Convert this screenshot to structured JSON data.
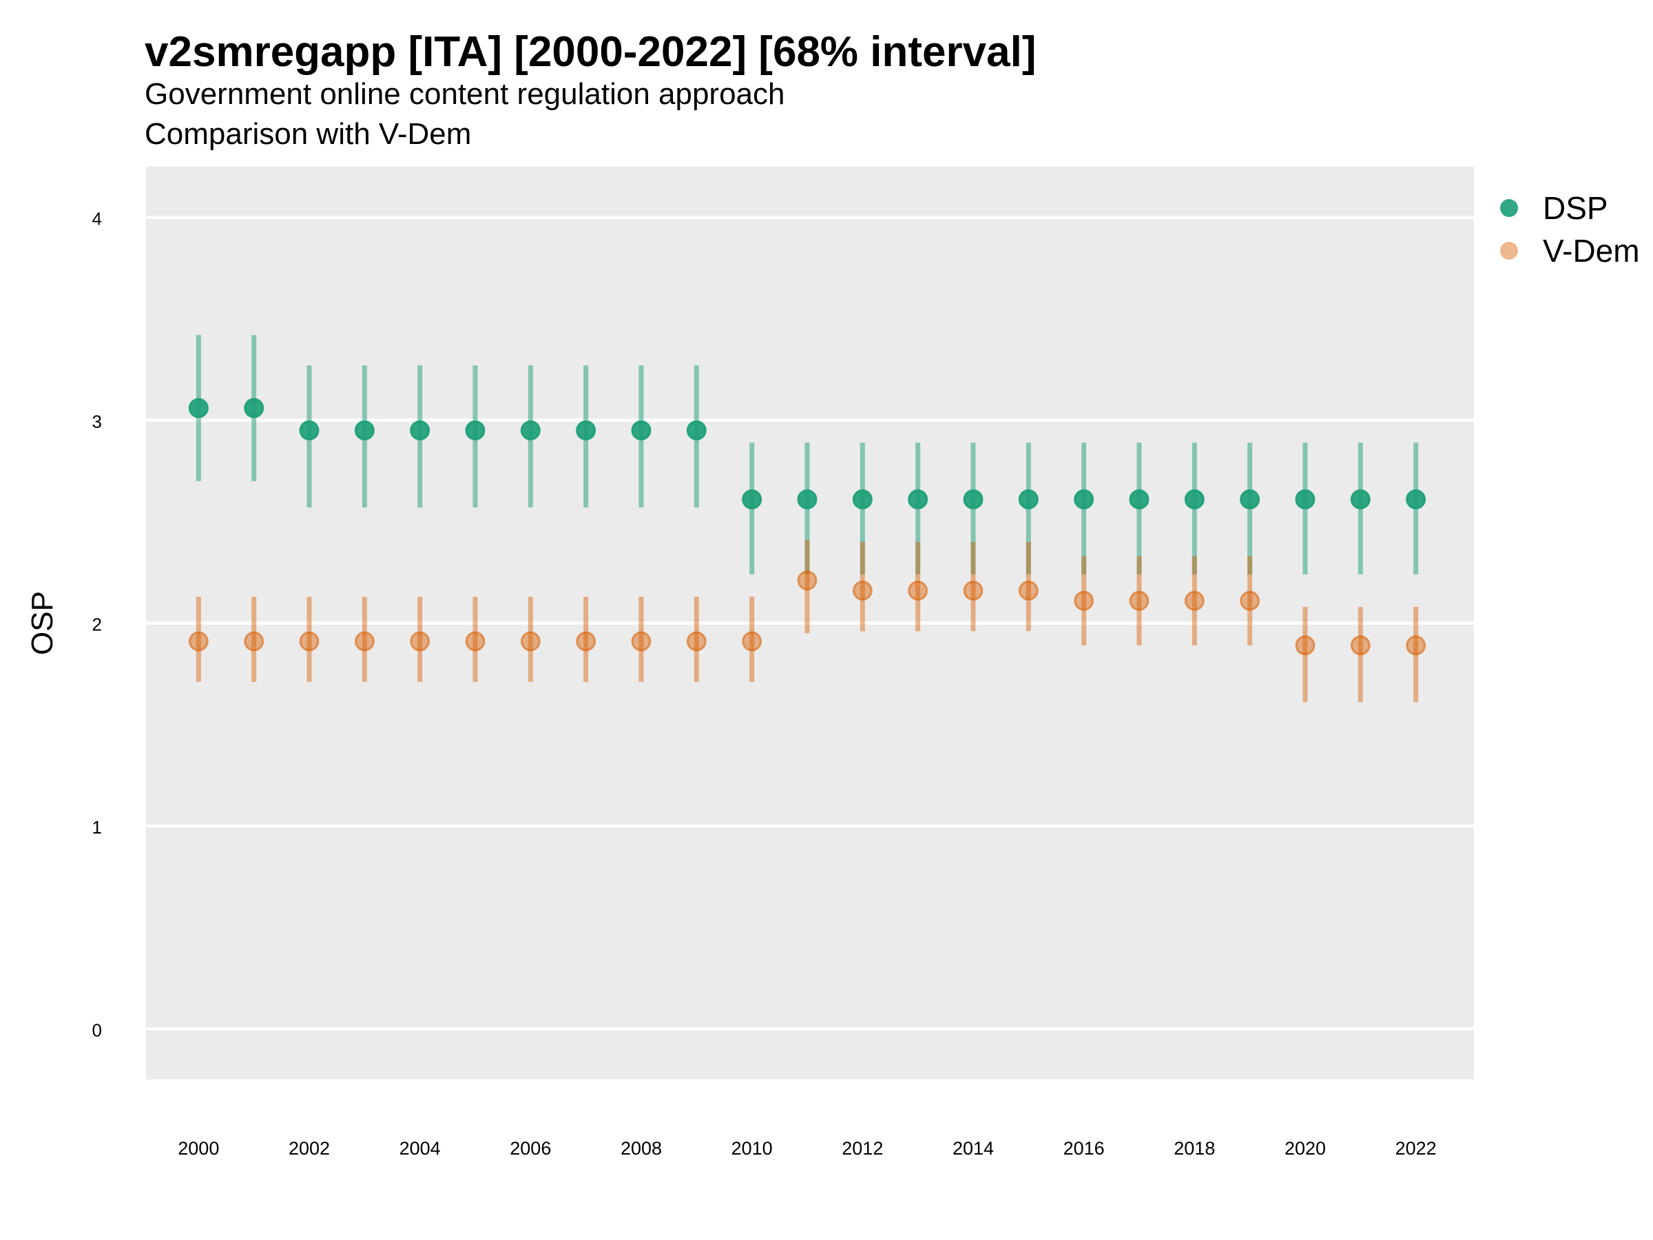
{
  "chart_data": {
    "type": "scatter",
    "title": "v2smregapp [ITA] [2000-2022] [68% interval]",
    "subtitle": "Government online content regulation approach",
    "caption": "Comparison with V-Dem",
    "xlabel": "",
    "ylabel": "OSP",
    "xlim": [
      1999.05,
      2023.05
    ],
    "ylim": [
      -0.25,
      4.25
    ],
    "x_ticks": [
      "2000",
      "2002",
      "2004",
      "2006",
      "2008",
      "2010",
      "2012",
      "2014",
      "2016",
      "2018",
      "2020",
      "2022"
    ],
    "y_ticks": [
      "0",
      "1",
      "2",
      "3",
      "4"
    ],
    "grid": true,
    "legend_position": "right",
    "x": [
      2000,
      2001,
      2002,
      2003,
      2004,
      2005,
      2006,
      2007,
      2008,
      2009,
      2010,
      2011,
      2012,
      2013,
      2014,
      2015,
      2016,
      2017,
      2018,
      2019,
      2020,
      2021,
      2022
    ],
    "series": [
      {
        "name": "DSP",
        "color": "#1b9e77",
        "values": [
          3.06,
          3.06,
          2.95,
          2.95,
          2.95,
          2.95,
          2.95,
          2.95,
          2.95,
          2.95,
          2.61,
          2.61,
          2.61,
          2.61,
          2.61,
          2.61,
          2.61,
          2.61,
          2.61,
          2.61,
          2.61,
          2.61,
          2.61
        ],
        "lower": [
          2.7,
          2.7,
          2.57,
          2.57,
          2.57,
          2.57,
          2.57,
          2.57,
          2.57,
          2.57,
          2.24,
          2.24,
          2.24,
          2.24,
          2.24,
          2.24,
          2.24,
          2.24,
          2.24,
          2.24,
          2.24,
          2.24,
          2.24
        ],
        "upper": [
          3.42,
          3.42,
          3.27,
          3.27,
          3.27,
          3.27,
          3.27,
          3.27,
          3.27,
          3.27,
          2.89,
          2.89,
          2.89,
          2.89,
          2.89,
          2.89,
          2.89,
          2.89,
          2.89,
          2.89,
          2.89,
          2.89,
          2.89
        ]
      },
      {
        "name": "V-Dem",
        "color": "#d95f02",
        "values": [
          1.91,
          1.91,
          1.91,
          1.91,
          1.91,
          1.91,
          1.91,
          1.91,
          1.91,
          1.91,
          1.91,
          2.21,
          2.16,
          2.16,
          2.16,
          2.16,
          2.11,
          2.11,
          2.11,
          2.11,
          1.89,
          1.89,
          1.89
        ],
        "lower": [
          1.71,
          1.71,
          1.71,
          1.71,
          1.71,
          1.71,
          1.71,
          1.71,
          1.71,
          1.71,
          1.71,
          1.95,
          1.96,
          1.96,
          1.96,
          1.96,
          1.89,
          1.89,
          1.89,
          1.89,
          1.61,
          1.61,
          1.61
        ],
        "upper": [
          2.13,
          2.13,
          2.13,
          2.13,
          2.13,
          2.13,
          2.13,
          2.13,
          2.13,
          2.13,
          2.13,
          2.41,
          2.4,
          2.4,
          2.4,
          2.4,
          2.33,
          2.33,
          2.33,
          2.33,
          2.08,
          2.08,
          2.08
        ]
      }
    ]
  }
}
